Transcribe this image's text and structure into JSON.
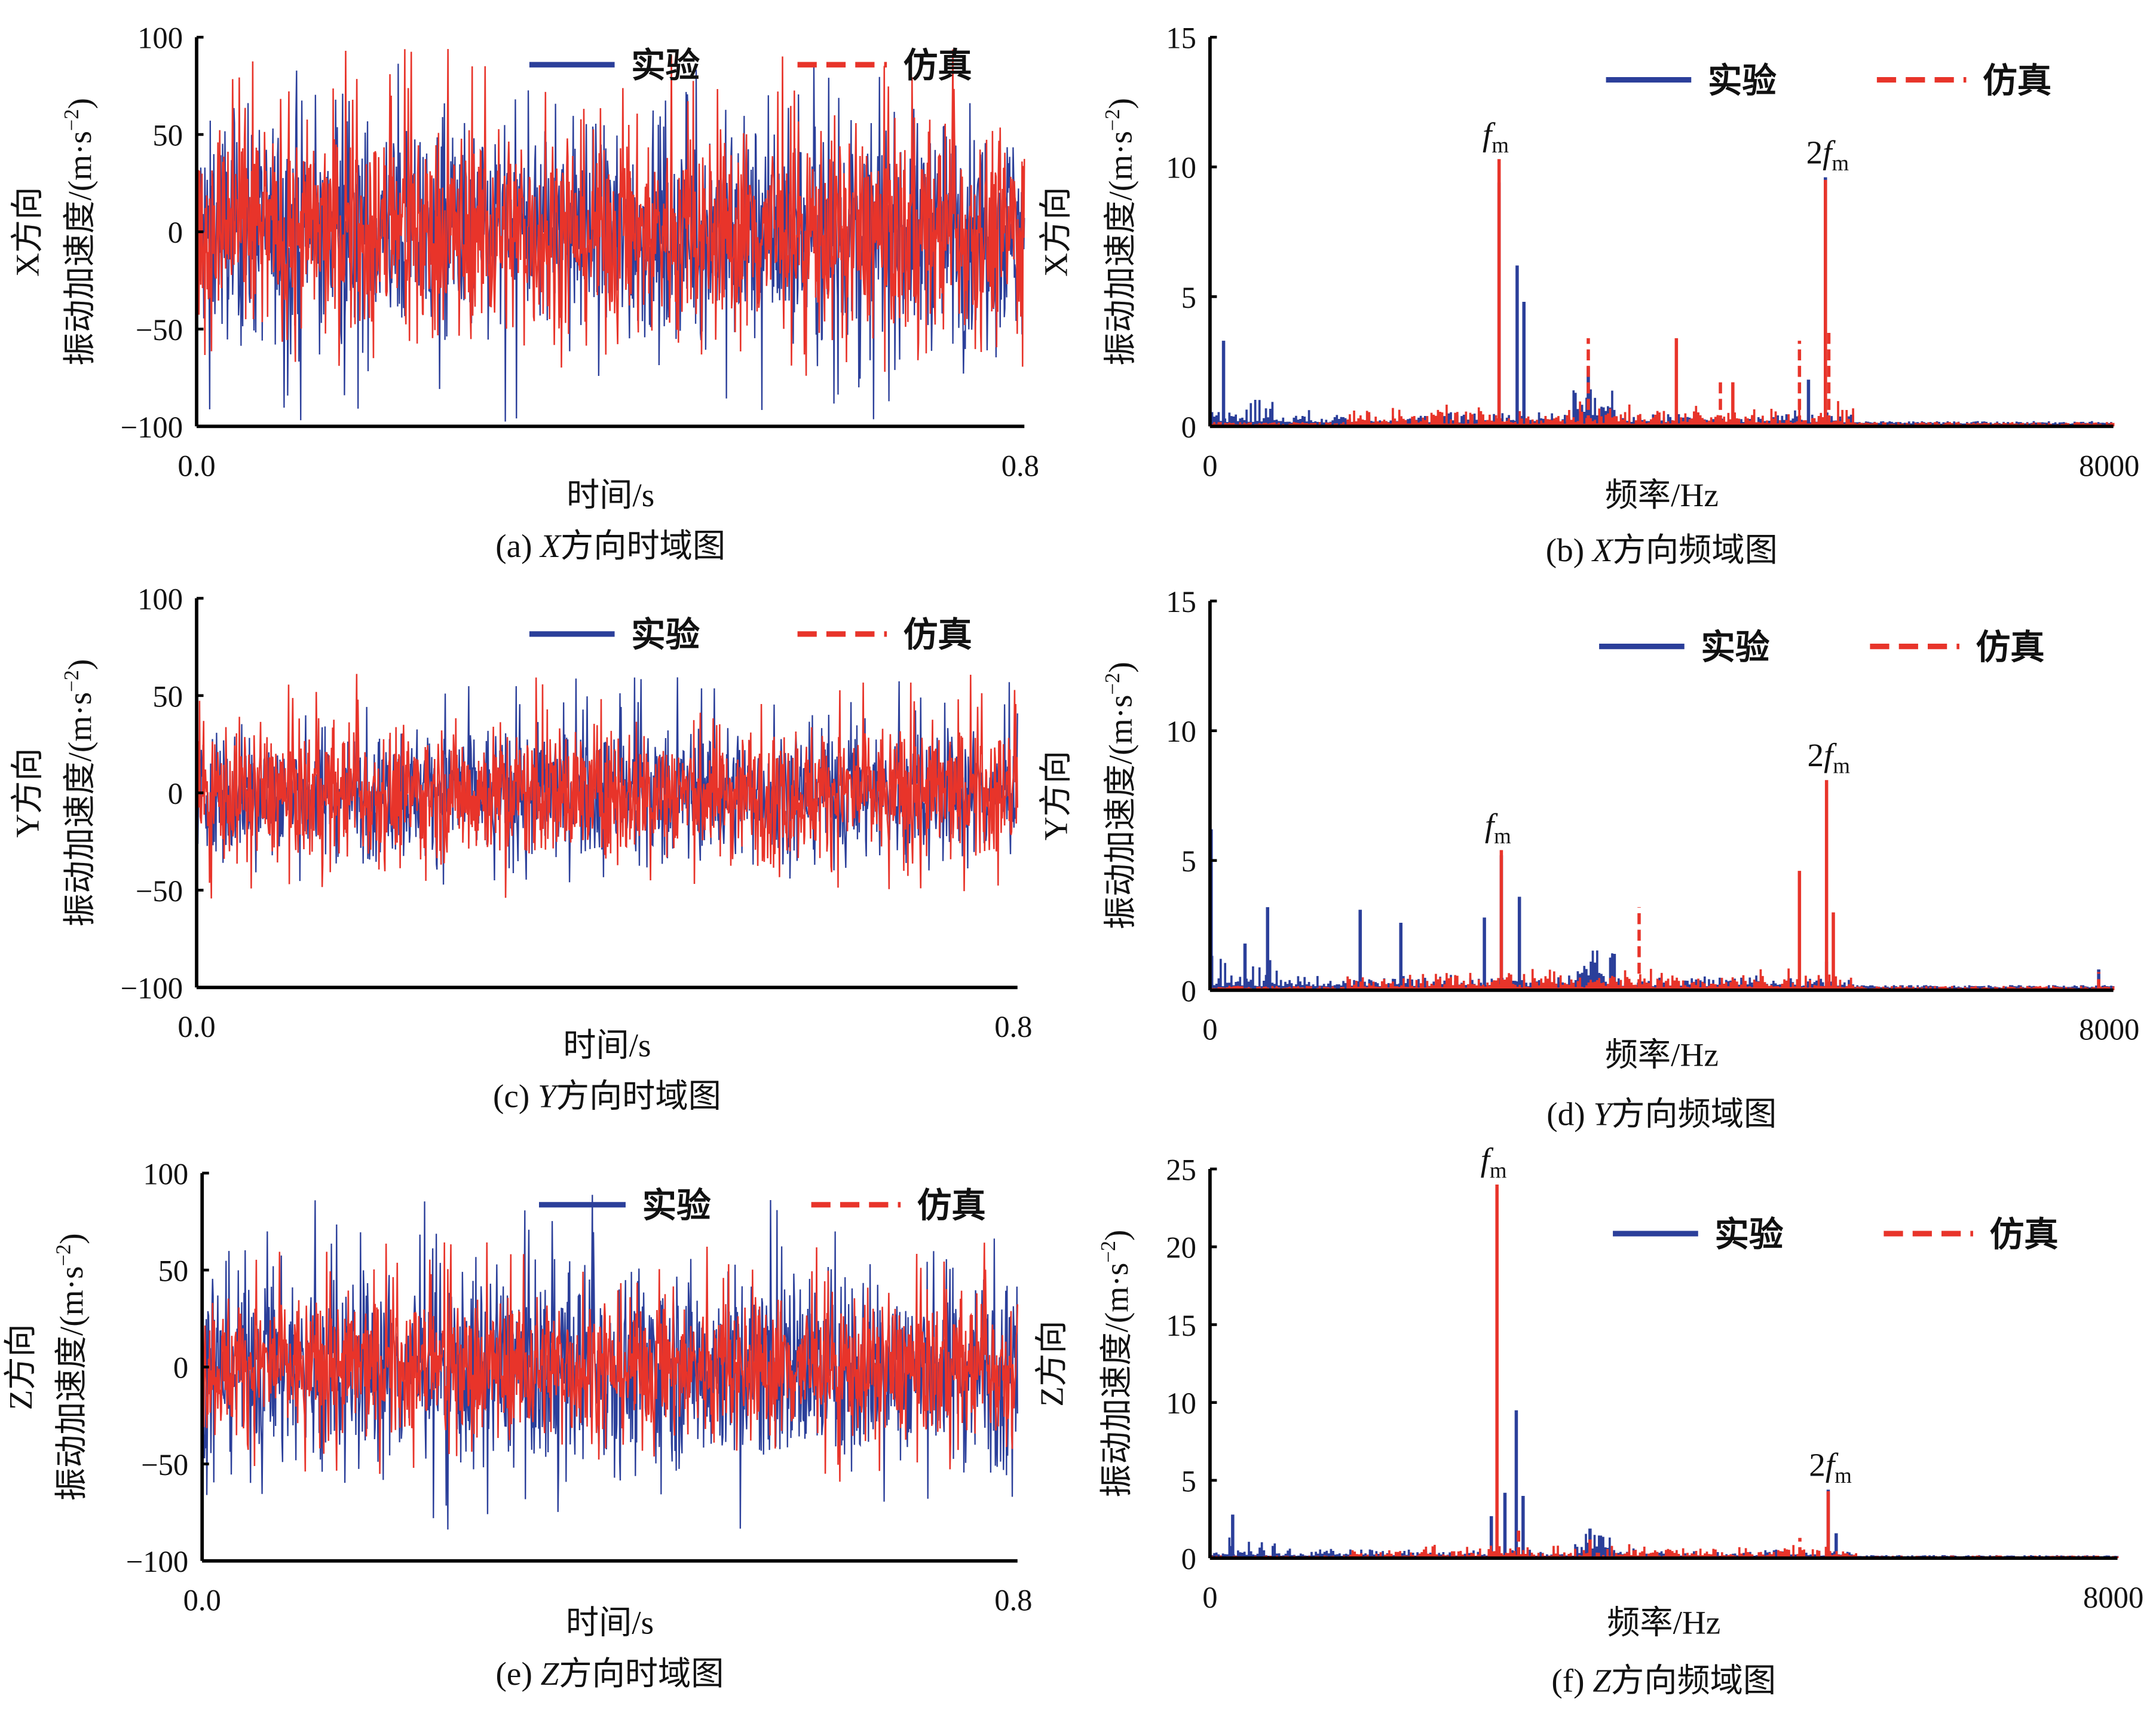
{
  "legend": {
    "experiment": "实验",
    "simulation": "仿真"
  },
  "colors": {
    "experiment": "#2b3f9a",
    "simulation": "#e8342a",
    "axis": "#000000"
  },
  "chart_data": [
    {
      "id": "a",
      "type": "line",
      "caption": {
        "label": "(a) ",
        "dir": "X",
        "text": "方向时域图"
      },
      "xlabel": "时间/s",
      "ylabel_dir": "X方向",
      "ylabel": "振动加速度/(m·s",
      "ylabel_exp": "−2",
      "ylabel_end": ")",
      "xlim": [
        0.0,
        0.8
      ],
      "xtick_labels": [
        "0.0",
        "0.8"
      ],
      "ylim": [
        -100,
        100
      ],
      "ytick_labels": [
        "100",
        "50",
        "0",
        "−50",
        "−100"
      ],
      "yticks": [
        100,
        50,
        0,
        -50,
        -100
      ],
      "series": [
        {
          "name": "实验",
          "style": "solid",
          "range": [
            -100,
            88
          ]
        },
        {
          "name": "仿真",
          "style": "dashed",
          "range": [
            -75,
            95
          ]
        }
      ]
    },
    {
      "id": "b",
      "type": "bar",
      "caption": {
        "label": "(b) ",
        "dir": "X",
        "text": "方向频域图"
      },
      "xlabel": "频率/Hz",
      "ylabel_dir": "X方向",
      "ylabel": "振动加速度/(m·s",
      "ylabel_exp": "−2",
      "ylabel_end": ")",
      "xlim": [
        0,
        8000
      ],
      "xtick_labels": [
        "0",
        "8000"
      ],
      "ylim": [
        0,
        15
      ],
      "ytick_labels": [
        "15",
        "10",
        "5",
        "0"
      ],
      "yticks": [
        15,
        10,
        5,
        0
      ],
      "annotations": [
        {
          "coef": "",
          "text": "f",
          "sub": "m",
          "x": 2560
        },
        {
          "coef": "2",
          "text": "f",
          "sub": "m",
          "x": 5450
        }
      ],
      "series": [
        {
          "name": "实验",
          "style": "solid",
          "peaks": [
            [
              120,
              3.3
            ],
            [
              2560,
              9.4
            ],
            [
              2720,
              6.2
            ],
            [
              2780,
              4.8
            ],
            [
              3350,
              2.3
            ],
            [
              5450,
              9.6
            ],
            [
              5300,
              1.8
            ]
          ]
        },
        {
          "name": "仿真",
          "style": "dashed",
          "peaks": [
            [
              2560,
              10.3
            ],
            [
              3350,
              3.4
            ],
            [
              4130,
              3.4
            ],
            [
              4520,
              1.7
            ],
            [
              4630,
              1.7
            ],
            [
              5220,
              3.3
            ],
            [
              5450,
              9.5
            ],
            [
              5480,
              3.8
            ]
          ]
        }
      ]
    },
    {
      "id": "c",
      "type": "line",
      "caption": {
        "label": "(c) ",
        "dir": "Y",
        "text": "方向时域图"
      },
      "xlabel": "时间/s",
      "ylabel_dir": "Y方向",
      "ylabel": "振动加速度/(m·s",
      "ylabel_exp": "−2",
      "ylabel_end": ")",
      "xlim": [
        0.0,
        0.8
      ],
      "xtick_labels": [
        "0.0",
        "0.8"
      ],
      "ylim": [
        -100,
        100
      ],
      "ytick_labels": [
        "100",
        "50",
        "0",
        "−50",
        "−100"
      ],
      "yticks": [
        100,
        50,
        0,
        -50,
        -100
      ],
      "series": [
        {
          "name": "实验",
          "style": "solid",
          "range": [
            -50,
            60
          ]
        },
        {
          "name": "仿真",
          "style": "dashed",
          "range": [
            -55,
            62
          ]
        }
      ]
    },
    {
      "id": "d",
      "type": "bar",
      "caption": {
        "label": "(d) ",
        "dir": "Y",
        "text": "方向频域图"
      },
      "xlabel": "频率/Hz",
      "ylabel_dir": "Y方向",
      "ylabel": "振动加速度/(m·s",
      "ylabel_exp": "−2",
      "ylabel_end": ")",
      "xlim": [
        0,
        8000
      ],
      "xtick_labels": [
        "0",
        "8000"
      ],
      "ylim": [
        0,
        15
      ],
      "ytick_labels": [
        "15",
        "10",
        "5",
        "0"
      ],
      "yticks": [
        15,
        10,
        5,
        0
      ],
      "annotations": [
        {
          "coef": "",
          "text": "f",
          "sub": "m",
          "x": 2580
        },
        {
          "coef": "2",
          "text": "f",
          "sub": "m",
          "x": 5460
        }
      ],
      "series": [
        {
          "name": "实验",
          "style": "solid",
          "peaks": [
            [
              10,
              6.2
            ],
            [
              310,
              1.8
            ],
            [
              510,
              3.2
            ],
            [
              1330,
              3.1
            ],
            [
              1690,
              2.6
            ],
            [
              2430,
              2.8
            ],
            [
              2580,
              5.2
            ],
            [
              2740,
              3.6
            ],
            [
              3580,
              1.4
            ],
            [
              5460,
              1.1
            ],
            [
              7870,
              0.8
            ]
          ]
        },
        {
          "name": "仿真",
          "style": "dashed",
          "peaks": [
            [
              2580,
              5.4
            ],
            [
              3800,
              3.2
            ],
            [
              5220,
              4.6
            ],
            [
              5460,
              8.1
            ],
            [
              5520,
              3.0
            ],
            [
              7870,
              0.7
            ]
          ]
        }
      ]
    },
    {
      "id": "e",
      "type": "line",
      "caption": {
        "label": "(e) ",
        "dir": "Z",
        "text": "方向时域图"
      },
      "xlabel": "时间/s",
      "ylabel_dir": "Z方向",
      "ylabel": "振动加速度/(m·s",
      "ylabel_exp": "−2",
      "ylabel_end": ")",
      "xlim": [
        0.0,
        0.8
      ],
      "xtick_labels": [
        "0.0",
        "0.8"
      ],
      "ylim": [
        -100,
        100
      ],
      "ytick_labels": [
        "100",
        "50",
        "0",
        "−50",
        "−100"
      ],
      "yticks": [
        100,
        50,
        0,
        -50,
        -100
      ],
      "series": [
        {
          "name": "实验",
          "style": "solid",
          "range": [
            -85,
            90
          ]
        },
        {
          "name": "仿真",
          "style": "dashed",
          "range": [
            -60,
            65
          ]
        }
      ]
    },
    {
      "id": "f",
      "type": "bar",
      "caption": {
        "label": "(f) ",
        "dir": "Z",
        "text": "方向频域图"
      },
      "xlabel": "频率/Hz",
      "ylabel_dir": "Z方向",
      "ylabel": "振动加速度/(m·s",
      "ylabel_exp": "−2",
      "ylabel_end": ")",
      "xlim": [
        0,
        8000
      ],
      "xtick_labels": [
        "0",
        "8000"
      ],
      "ylim": [
        0,
        25
      ],
      "ytick_labels": [
        "25",
        "20",
        "15",
        "10",
        "5",
        "0"
      ],
      "yticks": [
        25,
        20,
        15,
        10,
        5,
        0
      ],
      "annotations": [
        {
          "coef": "",
          "text": "f",
          "sub": "m",
          "x": 2530
        },
        {
          "coef": "2",
          "text": "f",
          "sub": "m",
          "x": 5450
        }
      ],
      "series": [
        {
          "name": "实验",
          "style": "solid",
          "peaks": [
            [
              200,
              2.8
            ],
            [
              2480,
              2.7
            ],
            [
              2600,
              4.2
            ],
            [
              2700,
              9.5
            ],
            [
              2760,
              4.0
            ],
            [
              3350,
              1.9
            ],
            [
              5450,
              4.4
            ],
            [
              5520,
              1.6
            ]
          ]
        },
        {
          "name": "仿真",
          "style": "dashed",
          "peaks": [
            [
              2530,
              24.0
            ],
            [
              2720,
              1.8
            ],
            [
              3350,
              1.2
            ],
            [
              5200,
              1.3
            ],
            [
              5450,
              4.3
            ]
          ]
        }
      ]
    }
  ]
}
